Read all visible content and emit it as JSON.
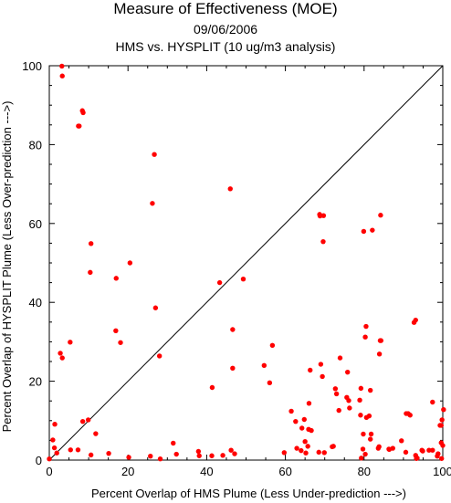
{
  "chart_data": {
    "type": "scatter",
    "title": "Measure of Effectiveness (MOE)",
    "subtitle": "09/06/2006",
    "subtitle2": "HMS vs. HYSPLIT  (10 ug/m3 analysis)",
    "xlabel": "Percent Overlap of HMS Plume (Less Under-prediction --->)",
    "ylabel": "Percent Overlap of HYSPLIT Plume (Less Over-prediction --->)",
    "xlim": [
      0,
      100
    ],
    "ylim": [
      0,
      100
    ],
    "xticks": [
      0,
      20,
      40,
      60,
      80,
      100
    ],
    "yticks": [
      0,
      20,
      40,
      60,
      80,
      100
    ],
    "grid": false,
    "diagonal_reference_line": true,
    "marker_color": "#ff0000",
    "line_color": "#000000",
    "x": [
      3.2,
      3.3,
      7.4,
      7.6,
      8.4,
      8.6,
      26.7,
      26.2,
      46.0,
      10.6,
      10.4,
      20.5,
      17.0,
      27.0,
      16.9,
      18.1,
      0.9,
      1.9,
      3.3,
      2.8,
      5.3,
      28.0,
      49.3,
      43.3,
      56.7,
      54.6,
      46.6,
      46.6,
      41.4,
      8.5,
      9.9,
      11.8,
      1.4,
      0.0,
      1.3,
      5.4,
      7.3,
      10.6,
      15.1,
      20.2,
      25.7,
      28.2,
      31.5,
      32.3,
      37.9,
      38.1,
      41.3,
      44.1,
      46.2,
      47.1,
      56.0,
      59.7,
      62.9,
      65.2,
      68.5,
      69.9,
      71.9,
      72.2,
      79.3,
      80.3,
      83.8,
      86.3,
      87.3,
      90.6,
      93.1,
      93.3,
      94.7,
      94.9,
      96.5,
      97.4,
      98.6,
      99.7,
      100.0,
      99.6,
      99.8,
      100.2,
      99.3,
      98.8,
      99.6,
      97.4,
      92.7,
      91.7,
      93.1,
      90.7,
      86.4,
      84.1,
      82.1,
      81.3,
      80.5,
      79.8,
      81.8,
      81.6,
      80.6,
      79.7,
      79.1,
      75.6,
      76.1,
      75.8,
      73.6,
      73.9,
      69.4,
      68.7,
      66.6,
      65.9,
      66.3,
      79.9,
      80.3,
      83.9,
      84.2,
      84.3,
      91.2,
      93.5,
      69.0,
      68.8,
      69.6,
      69.7,
      78.9,
      83.6,
      79.2,
      81.6,
      89.5,
      76.3,
      73.0,
      72.7,
      65.0,
      64.2,
      62.6,
      61.5,
      64.8,
      66.0,
      64.0,
      65.7
    ],
    "y": [
      99.9,
      97.4,
      84.7,
      84.7,
      88.6,
      88.1,
      77.5,
      65.1,
      68.8,
      54.9,
      47.6,
      50.0,
      46.1,
      38.6,
      32.8,
      29.8,
      5.1,
      1.8,
      25.9,
      27.1,
      29.9,
      26.4,
      45.9,
      45.0,
      29.1,
      24.0,
      33.1,
      23.3,
      18.4,
      9.8,
      10.2,
      6.7,
      9.1,
      0.3,
      3.1,
      2.6,
      2.6,
      1.3,
      1.7,
      0.7,
      1.0,
      0.3,
      4.3,
      1.5,
      2.2,
      1.1,
      1.1,
      1.2,
      2.5,
      1.6,
      19.6,
      1.9,
      3.0,
      1.8,
      2.0,
      1.9,
      3.4,
      3.5,
      0.5,
      1.5,
      3.4,
      2.8,
      3.0,
      2.0,
      1.2,
      0.4,
      2.5,
      2.3,
      2.5,
      2.5,
      1.0,
      0.4,
      3.7,
      8.8,
      10.2,
      12.8,
      8.8,
      1.6,
      4.4,
      14.7,
      34.9,
      11.4,
      35.5,
      11.8,
      2.7,
      30.3,
      58.3,
      11.2,
      33.9,
      6.6,
      6.6,
      17.7,
      10.8,
      2.8,
      11.4,
      15.9,
      15.1,
      22.3,
      12.6,
      25.9,
      21.2,
      62.3,
      7.5,
      7.8,
      22.8,
      58.0,
      31.2,
      26.9,
      62.1,
      30.3,
      11.8,
      0.5,
      24.3,
      61.9,
      55.4,
      62.0,
      15.2,
      3.0,
      18.2,
      5.3,
      4.9,
      13.2,
      16.8,
      18.1,
      4.7,
      8.1,
      9.8,
      12.4,
      10.3,
      14.4,
      2.4,
      3.5
    ]
  }
}
